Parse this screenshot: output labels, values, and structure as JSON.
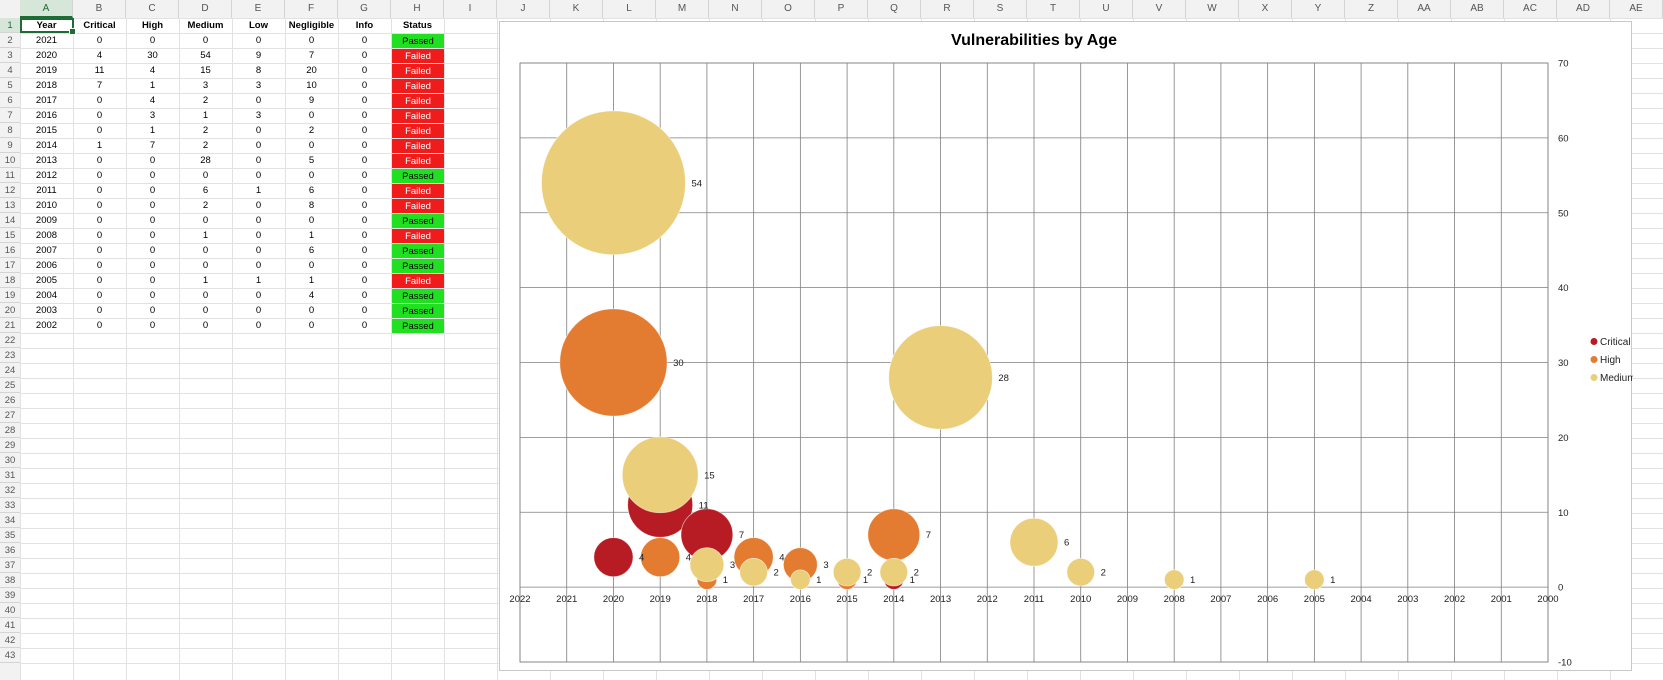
{
  "spreadsheet": {
    "column_letters": [
      "A",
      "B",
      "C",
      "D",
      "E",
      "F",
      "G",
      "H",
      "I",
      "J",
      "K",
      "L",
      "M",
      "N",
      "O",
      "P",
      "Q",
      "R",
      "S",
      "T",
      "U",
      "V",
      "W",
      "X",
      "Y",
      "Z",
      "AA",
      "AB",
      "AC",
      "AD",
      "AE"
    ],
    "row_numbers": [
      "1",
      "2",
      "3",
      "4",
      "5",
      "6",
      "7",
      "8",
      "9",
      "10",
      "11",
      "12",
      "13",
      "14",
      "15",
      "16",
      "17",
      "18",
      "19",
      "20",
      "21",
      "22",
      "23",
      "24",
      "25",
      "26",
      "27",
      "28",
      "29",
      "30",
      "31",
      "32",
      "33",
      "34",
      "35",
      "36",
      "37",
      "38",
      "39",
      "40",
      "41",
      "42",
      "43"
    ],
    "headers": [
      "Year",
      "Critical",
      "High",
      "Medium",
      "Low",
      "Negligible",
      "Info",
      "Status"
    ],
    "rows": [
      [
        "2021",
        "0",
        "0",
        "0",
        "0",
        "0",
        "0",
        "Passed"
      ],
      [
        "2020",
        "4",
        "30",
        "54",
        "9",
        "7",
        "0",
        "Failed"
      ],
      [
        "2019",
        "11",
        "4",
        "15",
        "8",
        "20",
        "0",
        "Failed"
      ],
      [
        "2018",
        "7",
        "1",
        "3",
        "3",
        "10",
        "0",
        "Failed"
      ],
      [
        "2017",
        "0",
        "4",
        "2",
        "0",
        "9",
        "0",
        "Failed"
      ],
      [
        "2016",
        "0",
        "3",
        "1",
        "3",
        "0",
        "0",
        "Failed"
      ],
      [
        "2015",
        "0",
        "1",
        "2",
        "0",
        "2",
        "0",
        "Failed"
      ],
      [
        "2014",
        "1",
        "7",
        "2",
        "0",
        "0",
        "0",
        "Failed"
      ],
      [
        "2013",
        "0",
        "0",
        "28",
        "0",
        "5",
        "0",
        "Failed"
      ],
      [
        "2012",
        "0",
        "0",
        "0",
        "0",
        "0",
        "0",
        "Passed"
      ],
      [
        "2011",
        "0",
        "0",
        "6",
        "1",
        "6",
        "0",
        "Failed"
      ],
      [
        "2010",
        "0",
        "0",
        "2",
        "0",
        "8",
        "0",
        "Failed"
      ],
      [
        "2009",
        "0",
        "0",
        "0",
        "0",
        "0",
        "0",
        "Passed"
      ],
      [
        "2008",
        "0",
        "0",
        "1",
        "0",
        "1",
        "0",
        "Failed"
      ],
      [
        "2007",
        "0",
        "0",
        "0",
        "0",
        "6",
        "0",
        "Passed"
      ],
      [
        "2006",
        "0",
        "0",
        "0",
        "0",
        "0",
        "0",
        "Passed"
      ],
      [
        "2005",
        "0",
        "0",
        "1",
        "1",
        "1",
        "0",
        "Failed"
      ],
      [
        "2004",
        "0",
        "0",
        "0",
        "0",
        "4",
        "0",
        "Passed"
      ],
      [
        "2003",
        "0",
        "0",
        "0",
        "0",
        "0",
        "0",
        "Passed"
      ],
      [
        "2002",
        "0",
        "0",
        "0",
        "0",
        "0",
        "0",
        "Passed"
      ]
    ],
    "status_colors": {
      "Passed": "#21e021",
      "Failed": "#f01c1c"
    }
  },
  "chart_data": {
    "type": "scatter",
    "subtype": "bubble",
    "title": "Vulnerabilities by Age",
    "xlabel": "",
    "ylabel": "",
    "x_ticks": [
      "2022",
      "2021",
      "2020",
      "2019",
      "2018",
      "2017",
      "2016",
      "2015",
      "2014",
      "2013",
      "2012",
      "2011",
      "2010",
      "2009",
      "2008",
      "2007",
      "2006",
      "2005",
      "2004",
      "2003",
      "2002",
      "2001",
      "2000"
    ],
    "y_ticks": [
      "70",
      "60",
      "50",
      "40",
      "30",
      "20",
      "10",
      "0",
      "-10"
    ],
    "xlim": [
      2022,
      2000
    ],
    "ylim": [
      -10,
      70
    ],
    "x_reversed": true,
    "y_axis_side": "right",
    "grid": true,
    "legend_position": "right",
    "series": [
      {
        "name": "Critical",
        "color": "#b71c24",
        "points": [
          [
            2020,
            4
          ],
          [
            2019,
            11
          ],
          [
            2018,
            7
          ],
          [
            2014,
            1
          ]
        ]
      },
      {
        "name": "High",
        "color": "#e37b30",
        "points": [
          [
            2020,
            30
          ],
          [
            2019,
            4
          ],
          [
            2018,
            1
          ],
          [
            2017,
            4
          ],
          [
            2016,
            3
          ],
          [
            2015,
            1
          ],
          [
            2014,
            7
          ]
        ]
      },
      {
        "name": "Medium",
        "color": "#ebce7a",
        "points": [
          [
            2020,
            54
          ],
          [
            2019,
            15
          ],
          [
            2018,
            3
          ],
          [
            2017,
            2
          ],
          [
            2016,
            1
          ],
          [
            2015,
            2
          ],
          [
            2014,
            2
          ],
          [
            2013,
            28
          ],
          [
            2011,
            6
          ],
          [
            2010,
            2
          ],
          [
            2008,
            1
          ],
          [
            2005,
            1
          ]
        ]
      }
    ]
  }
}
